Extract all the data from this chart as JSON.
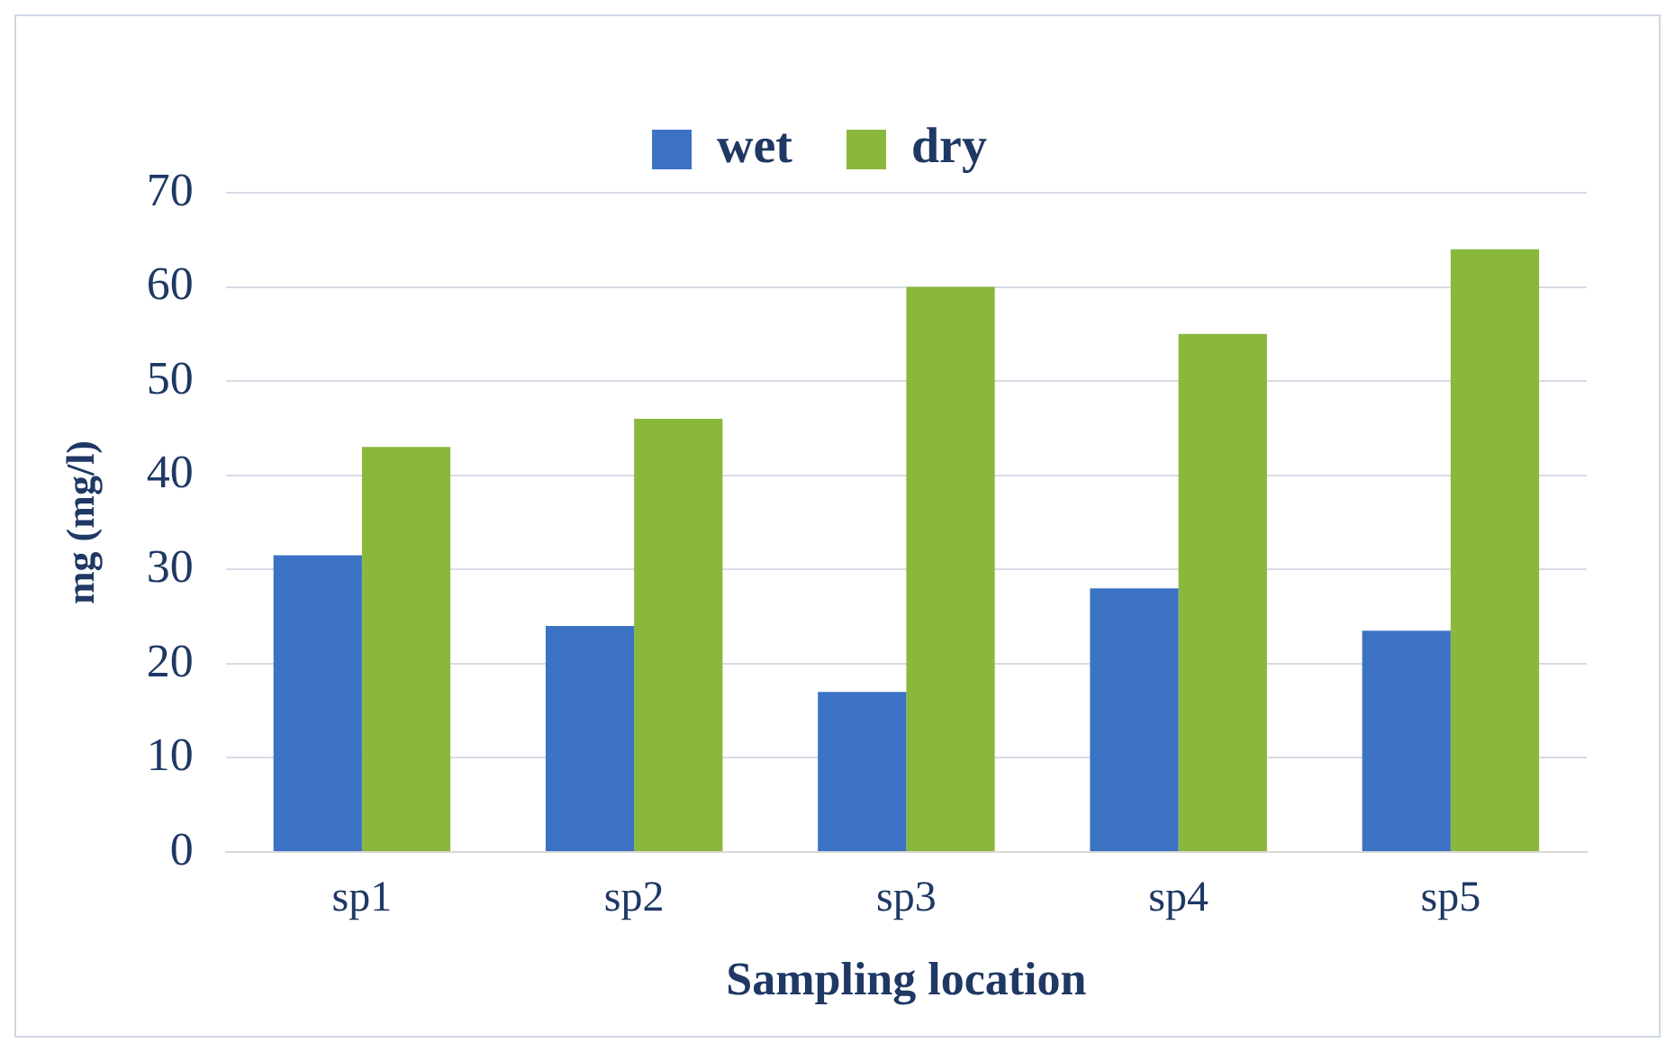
{
  "chart_data": {
    "type": "bar",
    "xlabel": "Sampling location",
    "ylabel": "mg (mg/l)",
    "categories": [
      "sp1",
      "sp2",
      "sp3",
      "sp4",
      "sp5"
    ],
    "series": [
      {
        "name": "wet",
        "color": "#3b72c4",
        "values": [
          31.5,
          24,
          17,
          28,
          23.5
        ]
      },
      {
        "name": "dry",
        "color": "#8ab83c",
        "values": [
          43,
          46,
          60,
          55,
          64
        ]
      }
    ],
    "ylim": [
      0,
      70
    ],
    "yticks": [
      0,
      10,
      20,
      30,
      40,
      50,
      60,
      70
    ],
    "grid": "y",
    "legend": "top"
  }
}
